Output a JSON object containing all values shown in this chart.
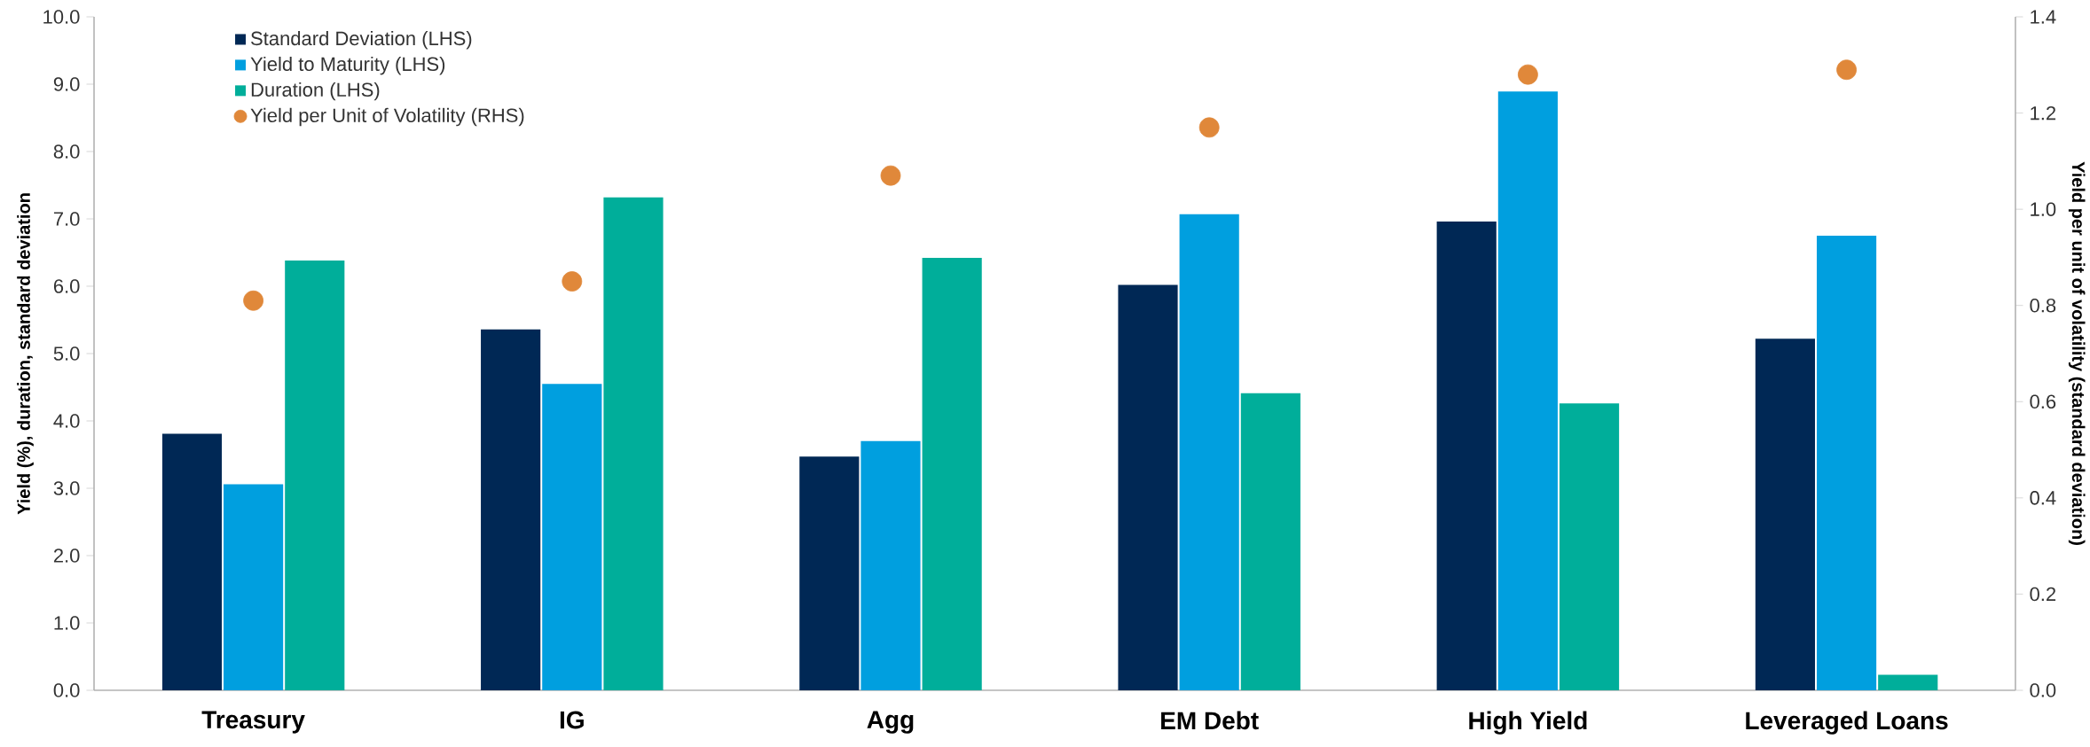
{
  "chart_data": {
    "type": "bar",
    "ylabel": "Yield (%), duration, standard deviation",
    "y2label": "Yield per unit of volatility (standard deviation)",
    "categories": [
      "Treasury",
      "IG",
      "Agg",
      "EM Debt",
      "High Yield",
      "Leveraged Loans"
    ],
    "series": [
      {
        "name": "Standard Deviation (LHS)",
        "color": "#002855",
        "values": [
          3.81,
          5.36,
          3.47,
          6.02,
          6.96,
          5.22
        ]
      },
      {
        "name": "Yield to Maturity (LHS)",
        "color": "#009fdf",
        "values": [
          3.06,
          4.55,
          3.7,
          7.07,
          8.89,
          6.75
        ]
      },
      {
        "name": "Duration (LHS)",
        "color": "#00ae9a",
        "values": [
          6.38,
          7.32,
          6.42,
          4.41,
          4.26,
          0.23
        ]
      },
      {
        "name": "Yield per Unit of Volatility (RHS)",
        "type": "scatter",
        "axis": "y2",
        "color": "#e0883a",
        "values": [
          0.81,
          0.85,
          1.07,
          1.17,
          1.28,
          1.29
        ]
      }
    ],
    "ylim": [
      0,
      10
    ],
    "yticks": [
      {
        "value": 0,
        "label": "0.0"
      },
      {
        "value": 1,
        "label": "1.0"
      },
      {
        "value": 2,
        "label": "2.0"
      },
      {
        "value": 3,
        "label": "3.0"
      },
      {
        "value": 4,
        "label": "4.0"
      },
      {
        "value": 5,
        "label": "5.0"
      },
      {
        "value": 6,
        "label": "6.0"
      },
      {
        "value": 7,
        "label": "7.0"
      },
      {
        "value": 8,
        "label": "8.0"
      },
      {
        "value": 9,
        "label": "9.0"
      },
      {
        "value": 10,
        "label": "10.0"
      }
    ],
    "y2lim": [
      0,
      1.4
    ],
    "y2ticks": [
      {
        "value": 0,
        "label": "0.0"
      },
      {
        "value": 0.2,
        "label": "0.2"
      },
      {
        "value": 0.4,
        "label": "0.4"
      },
      {
        "value": 0.6,
        "label": "0.6"
      },
      {
        "value": 0.8,
        "label": "0.8"
      },
      {
        "value": 1.0,
        "label": "1.0"
      },
      {
        "value": 1.2,
        "label": "1.2"
      },
      {
        "value": 1.4,
        "label": "1.4"
      }
    ],
    "legend": "top left",
    "grid": false
  }
}
